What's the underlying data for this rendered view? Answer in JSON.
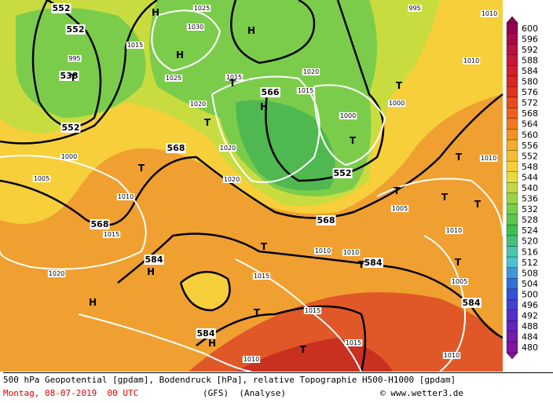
{
  "map": {
    "contour_labels": [
      "552",
      "552",
      "538",
      "552",
      "568",
      "568",
      "566",
      "552",
      "568",
      "584",
      "584",
      "584",
      "584",
      "1025",
      "1030",
      "1015",
      "1025",
      "1020",
      "995",
      "1015",
      "1020",
      "1015",
      "1000",
      "1000",
      "995",
      "1010",
      "1010",
      "1000",
      "1005",
      "1010",
      "1015",
      "1020",
      "1020",
      "1005",
      "1010",
      "1010",
      "1010",
      "1010",
      "1015",
      "1020",
      "1005",
      "1015",
      "1015",
      "1010",
      "1010"
    ],
    "pressure_systems": [
      "H",
      "H",
      "H",
      "H",
      "H",
      "H",
      "H",
      "T",
      "T",
      "T",
      "T",
      "T",
      "T",
      "T",
      "T",
      "T",
      "T",
      "T",
      "T",
      "T",
      "T",
      "T"
    ],
    "legend": [
      600,
      596,
      592,
      588,
      584,
      580,
      576,
      572,
      568,
      564,
      560,
      556,
      552,
      548,
      544,
      540,
      536,
      532,
      528,
      524,
      520,
      516,
      512,
      508,
      504,
      500,
      496,
      492,
      488,
      484,
      480
    ]
  },
  "footer": {
    "description": "500 hPa Geopotential [gpdam], Bodendruck [hPa], relative Topographie H500-H1000 [gpdam]",
    "date": "Montag, 08-07-2019  00 UTC",
    "model": "(GFS)  (Analyse)",
    "source": "© www.wetter3.de"
  }
}
